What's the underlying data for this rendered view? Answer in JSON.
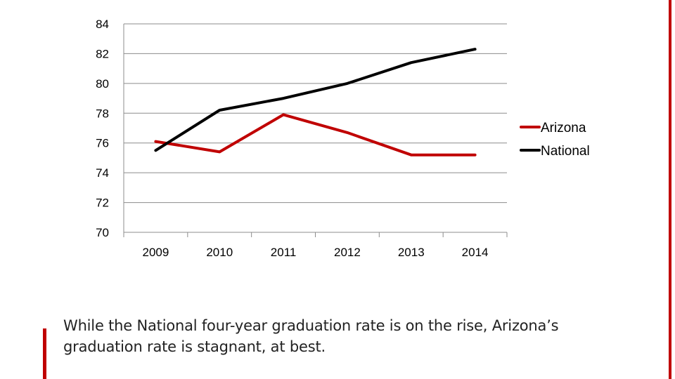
{
  "colors": {
    "accent": "#c00000",
    "national": "#000000",
    "grid": "#8c8c8c",
    "text": "#222222"
  },
  "chart_data": {
    "type": "line",
    "title": "",
    "xlabel": "",
    "ylabel": "",
    "categories": [
      "2009",
      "2010",
      "2011",
      "2012",
      "2013",
      "2014"
    ],
    "series": [
      {
        "name": "Arizona",
        "color": "#c00000",
        "values": [
          76.1,
          75.4,
          77.9,
          76.7,
          75.2,
          75.2
        ]
      },
      {
        "name": "National",
        "color": "#000000",
        "values": [
          75.5,
          78.2,
          79.0,
          80.0,
          81.4,
          82.3
        ]
      }
    ],
    "ylim": [
      70,
      84
    ],
    "yticks": [
      "70",
      "72",
      "74",
      "76",
      "78",
      "80",
      "82",
      "84"
    ],
    "grid": true,
    "legend_position": "right"
  },
  "caption": {
    "line1": "While the National four-year graduation rate is on the rise, Arizona’s",
    "line2": "graduation rate is stagnant, at best."
  }
}
